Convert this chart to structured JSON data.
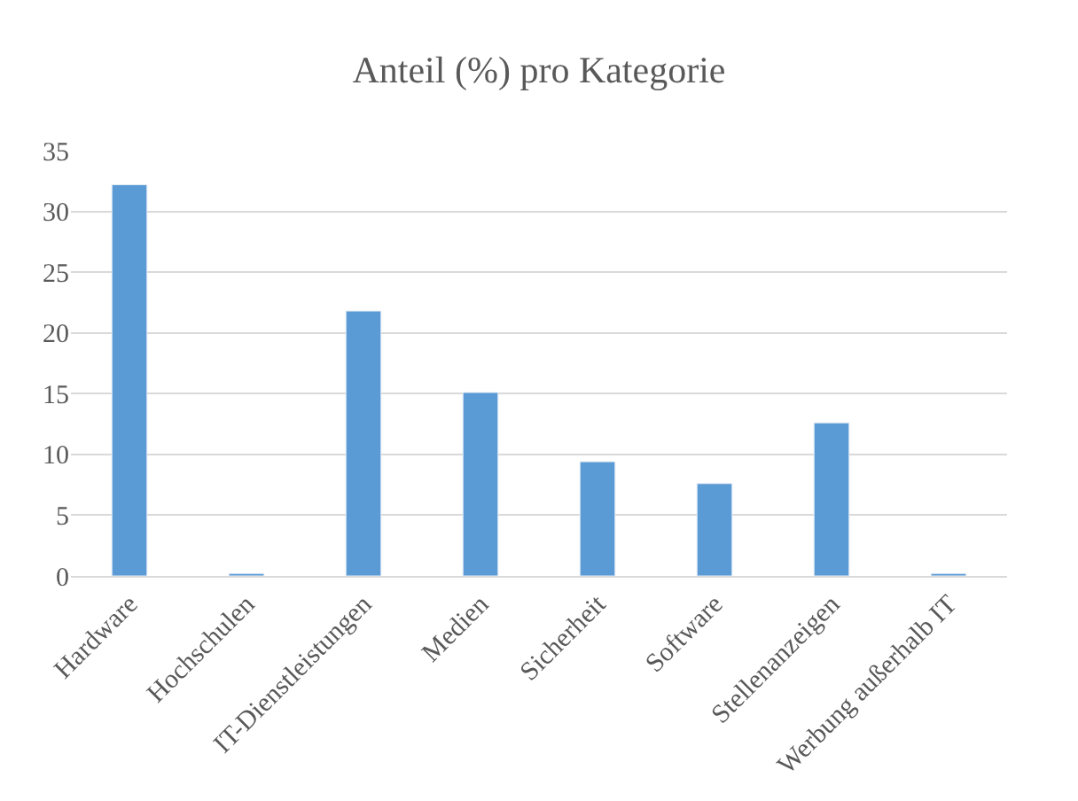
{
  "chart_data": {
    "type": "bar",
    "title": "Anteil (%) pro Kategorie",
    "categories": [
      "Hardware",
      "Hochschulen",
      "IT-Dienstleistungen",
      "Medien",
      "Sicherheit",
      "Software",
      "Stellenanzeigen",
      "Werbung außerhalb IT"
    ],
    "values": [
      32.2,
      0.2,
      21.8,
      15.1,
      9.4,
      7.6,
      12.6,
      0.2
    ],
    "color": "#5b9bd5",
    "ylim": [
      0,
      35
    ],
    "yticks": [
      0,
      5,
      10,
      15,
      20,
      25,
      30,
      35
    ],
    "grid": "y",
    "legend": false
  }
}
